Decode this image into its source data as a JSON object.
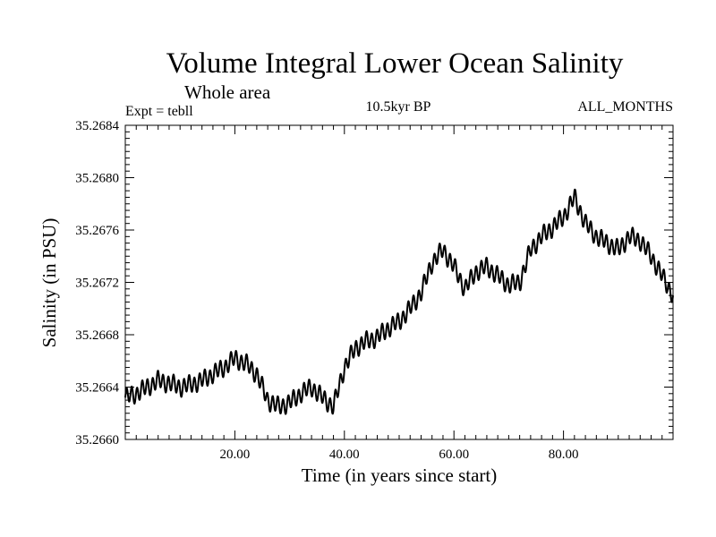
{
  "chart_data": {
    "type": "line",
    "title": "Volume Integral Lower Ocean Salinity",
    "subtitle": "Whole area",
    "annotations": {
      "experiment": "Expt = tebll",
      "period": "10.5kyr BP",
      "months": "ALL_MONTHS"
    },
    "xlabel": "Time (in years since start)",
    "ylabel": "Salinity (in PSU)",
    "xlim": [
      0,
      100
    ],
    "ylim": [
      35.266,
      35.2684
    ],
    "x_ticks": [
      20,
      40,
      60,
      80
    ],
    "x_tick_labels": [
      "20.00",
      "40.00",
      "60.00",
      "80.00"
    ],
    "y_ticks": [
      35.266,
      35.2664,
      35.2668,
      35.2672,
      35.2676,
      35.268,
      35.2684
    ],
    "y_tick_labels": [
      "35.2660",
      "35.2664",
      "35.2668",
      "35.2672",
      "35.2676",
      "35.2680",
      "35.2684"
    ],
    "grid": false,
    "series": [
      {
        "name": "Salinity",
        "color": "#000000",
        "x": [
          0,
          2,
          4,
          6,
          8,
          10,
          12,
          14,
          16,
          18,
          20,
          22,
          24,
          26,
          28,
          30,
          32,
          34,
          36,
          38,
          40,
          42,
          44,
          46,
          48,
          50,
          52,
          54,
          56,
          58,
          60,
          62,
          64,
          66,
          68,
          70,
          72,
          74,
          76,
          78,
          80,
          82,
          84,
          86,
          88,
          90,
          92,
          94,
          96,
          98,
          100
        ],
        "values": [
          35.26632,
          35.26635,
          35.2664,
          35.26645,
          35.26643,
          35.2664,
          35.26642,
          35.26645,
          35.2665,
          35.26655,
          35.26662,
          35.26658,
          35.2665,
          35.2663,
          35.26625,
          35.26628,
          35.26635,
          35.2664,
          35.26632,
          35.26625,
          35.26655,
          35.2667,
          35.26675,
          35.26678,
          35.26685,
          35.2669,
          35.267,
          35.26712,
          35.26735,
          35.26745,
          35.26732,
          35.26715,
          35.26728,
          35.26732,
          35.26725,
          35.26718,
          35.2672,
          35.26745,
          35.26755,
          35.26762,
          35.2677,
          35.26785,
          35.26765,
          35.26755,
          35.2675,
          35.26745,
          35.26755,
          35.26752,
          35.2674,
          35.26725,
          35.2671
        ]
      }
    ]
  }
}
